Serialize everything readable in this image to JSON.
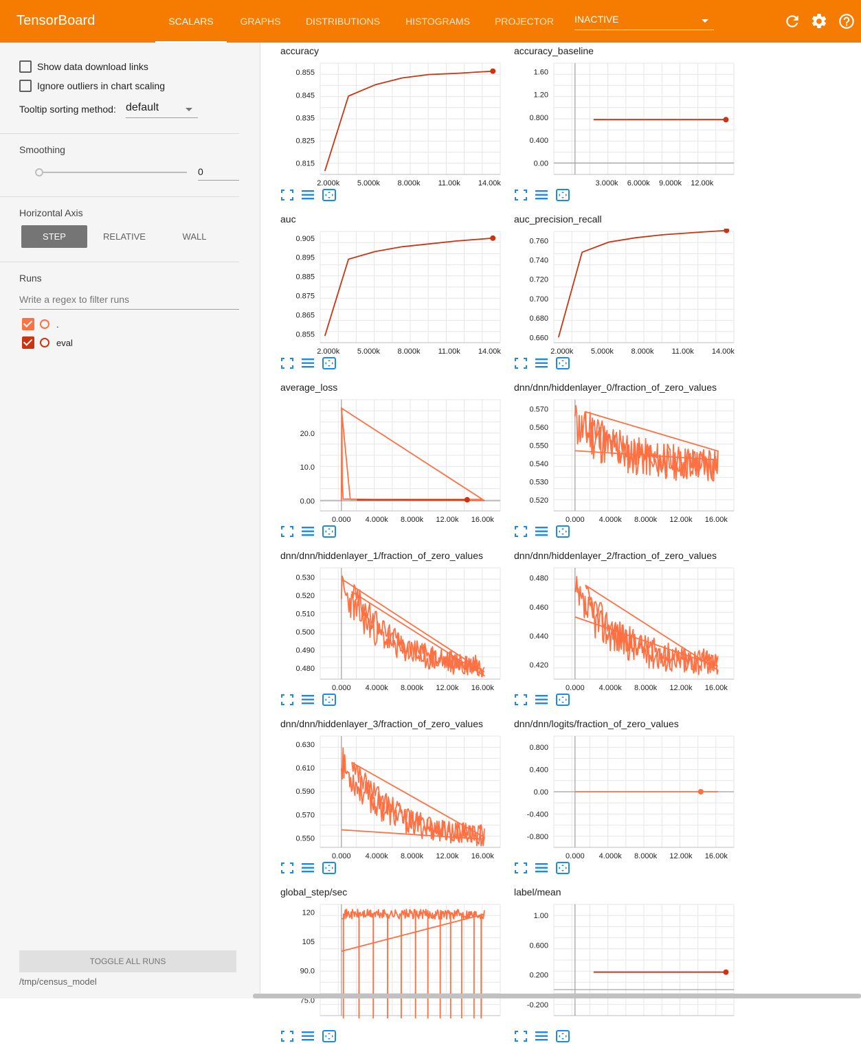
{
  "app": {
    "title": "TensorBoard"
  },
  "nav": {
    "tabs": [
      {
        "label": "SCALARS",
        "active": true
      },
      {
        "label": "GRAPHS"
      },
      {
        "label": "DISTRIBUTIONS"
      },
      {
        "label": "HISTOGRAMS"
      },
      {
        "label": "PROJECTOR"
      }
    ],
    "inactive_select": "INACTIVE",
    "icons": [
      "refresh-icon",
      "settings-icon",
      "help-icon"
    ]
  },
  "sidebar": {
    "show_download_links": {
      "label": "Show data download links",
      "checked": false
    },
    "ignore_outliers": {
      "label": "Ignore outliers in chart scaling",
      "checked": false
    },
    "tooltip_sorting": {
      "label": "Tooltip sorting method:",
      "value": "default"
    },
    "smoothing": {
      "title": "Smoothing",
      "value": "0"
    },
    "horizontal_axis": {
      "title": "Horizontal Axis",
      "options": [
        "STEP",
        "RELATIVE",
        "WALL"
      ],
      "selected": "STEP"
    },
    "runs": {
      "title": "Runs",
      "filter_placeholder": "Write a regex to filter runs",
      "items": [
        {
          "name": ".",
          "color": "#ff7043",
          "checked": true
        },
        {
          "name": "eval",
          "color": "#cc3311",
          "checked": true
        }
      ]
    },
    "toggle_all": "TOGGLE ALL RUNS",
    "logdir": "/tmp/census_model"
  },
  "colors": {
    "accent": "#f57c00",
    "run_train": "#ff7043",
    "run_eval": "#cc3311",
    "icon_blue": "#1e88e5"
  },
  "chart_data": [
    {
      "title": "accuracy",
      "type": "line",
      "x_ticks": [
        "2.000k",
        "5.000k",
        "8.000k",
        "11.00k",
        "14.00k"
      ],
      "y_ticks": [
        "0.855",
        "0.845",
        "0.835",
        "0.825",
        "0.815"
      ],
      "xlim": [
        1400,
        14800
      ],
      "ylim": [
        0.81,
        0.859
      ],
      "series": [
        {
          "run": "eval",
          "color": "#cc3311",
          "end_marker": true,
          "x": [
            1750,
            3500,
            5500,
            7500,
            9500,
            11500,
            14250
          ],
          "y": [
            0.8115,
            0.8445,
            0.8495,
            0.8525,
            0.854,
            0.8545,
            0.8555
          ]
        }
      ]
    },
    {
      "title": "accuracy_baseline",
      "type": "line",
      "x_ticks": [
        "3.000k",
        "6.000k",
        "9.000k",
        "12.00k"
      ],
      "y_ticks": [
        "1.60",
        "1.20",
        "0.800",
        "0.400",
        "0.00"
      ],
      "xlim": [
        -2000,
        15000
      ],
      "ylim": [
        -0.2,
        1.75
      ],
      "zero_line": true,
      "series": [
        {
          "run": "eval",
          "color": "#cc3311",
          "end_marker": true,
          "x": [
            1750,
            14250
          ],
          "y": [
            0.76,
            0.76
          ]
        }
      ]
    },
    {
      "title": "auc",
      "type": "line",
      "x_ticks": [
        "2.000k",
        "5.000k",
        "8.000k",
        "11.00k",
        "14.00k"
      ],
      "y_ticks": [
        "0.905",
        "0.895",
        "0.885",
        "0.875",
        "0.865",
        "0.855"
      ],
      "xlim": [
        1400,
        14800
      ],
      "ylim": [
        0.8505,
        0.9085
      ],
      "series": [
        {
          "run": "eval",
          "color": "#cc3311",
          "end_marker": true,
          "x": [
            1750,
            3500,
            5500,
            7500,
            9500,
            11500,
            14250
          ],
          "y": [
            0.854,
            0.894,
            0.898,
            0.9005,
            0.902,
            0.9035,
            0.905
          ]
        }
      ]
    },
    {
      "title": "auc_precision_recall",
      "type": "line",
      "x_ticks": [
        "2.000k",
        "5.000k",
        "8.000k",
        "11.00k",
        "14.00k"
      ],
      "y_ticks": [
        "0.760",
        "0.740",
        "0.720",
        "0.700",
        "0.680",
        "0.660"
      ],
      "xlim": [
        1400,
        14800
      ],
      "ylim": [
        0.6545,
        0.7695
      ],
      "series": [
        {
          "run": "eval",
          "color": "#cc3311",
          "end_marker": true,
          "x": [
            1750,
            3500,
            5500,
            7500,
            9500,
            11500,
            14250
          ],
          "y": [
            0.66,
            0.748,
            0.7585,
            0.763,
            0.766,
            0.768,
            0.7705
          ]
        }
      ]
    },
    {
      "title": "average_loss",
      "type": "line",
      "x_ticks": [
        "0.000",
        "4.000k",
        "8.000k",
        "12.00k",
        "16.00k"
      ],
      "y_ticks": [
        "20.0",
        "10.0",
        "0.00"
      ],
      "xlim": [
        -2400,
        18000
      ],
      "ylim": [
        -3,
        30
      ],
      "zero_line": true,
      "series": [
        {
          "run": ".",
          "color": "#ff7043",
          "x": [
            0,
            50,
            100,
            200,
            16200,
            0,
            1000,
            3000,
            6000,
            9000,
            12000,
            16000
          ],
          "y": [
            0,
            27.5,
            5,
            0.5,
            0.05,
            27.5,
            0.4,
            0.4,
            0.4,
            0.4,
            0.4,
            0.4
          ]
        },
        {
          "run": "eval",
          "color": "#cc3311",
          "end_marker": true,
          "x": [
            1750,
            5000,
            8000,
            11000,
            14250
          ],
          "y": [
            0.3,
            0.3,
            0.3,
            0.3,
            0.3
          ]
        }
      ]
    },
    {
      "title": "dnn/dnn/hiddenlayer_0/fraction_of_zero_values",
      "type": "line",
      "x_ticks": [
        "0.000",
        "4.000k",
        "8.000k",
        "12.00k",
        "16.00k"
      ],
      "y_ticks": [
        "0.570",
        "0.560",
        "0.550",
        "0.540",
        "0.530",
        "0.520"
      ],
      "xlim": [
        -2400,
        18000
      ],
      "ylim": [
        0.514,
        0.575
      ],
      "series": [
        {
          "run": ".",
          "color": "#ff7043",
          "noisy": true,
          "seed": 11,
          "x_start": 0,
          "x_end": 16200,
          "start": 0.562,
          "end": 0.539,
          "noise": 0.009,
          "peak": 0.568,
          "overlay_line": {
            "x": [
              0,
              16200
            ],
            "y": [
              0.547,
              0.542
            ]
          }
        }
      ]
    },
    {
      "title": "dnn/dnn/hiddenlayer_1/fraction_of_zero_values",
      "type": "line",
      "x_ticks": [
        "0.000",
        "4.000k",
        "8.000k",
        "12.00k",
        "16.00k"
      ],
      "y_ticks": [
        "0.530",
        "0.520",
        "0.510",
        "0.500",
        "0.490",
        "0.480"
      ],
      "xlim": [
        -2400,
        18000
      ],
      "ylim": [
        0.474,
        0.535
      ],
      "series": [
        {
          "run": ".",
          "color": "#ff7043",
          "noisy": true,
          "seed": 23,
          "x_start": 0,
          "x_end": 16200,
          "start": 0.524,
          "end": 0.481,
          "noise": 0.006,
          "peak": 0.529,
          "overlay_line": {
            "x": [
              0,
              16200
            ],
            "y": [
              0.529,
              0.478
            ]
          }
        }
      ]
    },
    {
      "title": "dnn/dnn/hiddenlayer_2/fraction_of_zero_values",
      "type": "line",
      "x_ticks": [
        "0.000",
        "4.000k",
        "8.000k",
        "12.00k",
        "16.00k"
      ],
      "y_ticks": [
        "0.480",
        "0.460",
        "0.440",
        "0.420"
      ],
      "xlim": [
        -2400,
        18000
      ],
      "ylim": [
        0.41,
        0.487
      ],
      "series": [
        {
          "run": ".",
          "color": "#ff7043",
          "noisy": true,
          "seed": 37,
          "x_start": 0,
          "x_end": 16200,
          "start": 0.468,
          "end": 0.421,
          "noise": 0.009,
          "peak": 0.481,
          "overlay_line": {
            "x": [
              0,
              16200
            ],
            "y": [
              0.453,
              0.419
            ]
          }
        }
      ]
    },
    {
      "title": "dnn/dnn/hiddenlayer_3/fraction_of_zero_values",
      "type": "line",
      "x_ticks": [
        "0.000",
        "4.000k",
        "8.000k",
        "12.00k",
        "16.00k"
      ],
      "y_ticks": [
        "0.630",
        "0.610",
        "0.590",
        "0.570",
        "0.550"
      ],
      "xlim": [
        -2400,
        18000
      ],
      "ylim": [
        0.542,
        0.637
      ],
      "series": [
        {
          "run": ".",
          "color": "#ff7043",
          "noisy": true,
          "seed": 53,
          "x_start": 0,
          "x_end": 16200,
          "start": 0.614,
          "end": 0.552,
          "noise": 0.009,
          "peak": 0.627,
          "overlay_line": {
            "x": [
              0,
              16200
            ],
            "y": [
              0.557,
              0.549
            ]
          }
        }
      ]
    },
    {
      "title": "dnn/dnn/logits/fraction_of_zero_values",
      "type": "line",
      "x_ticks": [
        "0.000",
        "4.000k",
        "8.000k",
        "12.00k",
        "16.00k"
      ],
      "y_ticks": [
        "0.800",
        "0.400",
        "0.00",
        "-0.400",
        "-0.800"
      ],
      "xlim": [
        -2400,
        18000
      ],
      "ylim": [
        -1.0,
        1.0
      ],
      "zero_line": true,
      "series": [
        {
          "run": ".",
          "color": "#ff7043",
          "x": [
            0,
            16200
          ],
          "y": [
            0,
            0
          ]
        },
        {
          "run": "eval",
          "color": "#ff7043",
          "end_marker": true,
          "x": [
            14250
          ],
          "y": [
            0
          ]
        }
      ]
    },
    {
      "title": "global_step/sec",
      "type": "line",
      "x_ticks": [],
      "y_ticks": [
        "120",
        "105",
        "90.0",
        "75.0"
      ],
      "xlim": [
        -2400,
        18000
      ],
      "ylim": [
        67,
        124
      ],
      "clipped": true,
      "series": [
        {
          "run": ".",
          "color": "#ff7043",
          "spiky": true,
          "seed": 71,
          "x_start": 0,
          "x_end": 16200,
          "base": 119,
          "noise": 2.5,
          "dips_x": [
            200,
            2000,
            3600,
            5200,
            6800,
            8400,
            9800,
            11200,
            12400,
            13600,
            15000,
            15800
          ],
          "overlay_line": {
            "x": [
              0,
              16200
            ],
            "y": [
              100,
              119
            ]
          }
        }
      ]
    },
    {
      "title": "label/mean",
      "type": "line",
      "x_ticks": [],
      "y_ticks": [
        "1.00",
        "0.600",
        "0.200",
        "-0.200"
      ],
      "xlim": [
        -2000,
        15000
      ],
      "ylim": [
        -0.35,
        1.15
      ],
      "zero_line": true,
      "clipped": true,
      "series": [
        {
          "run": "eval",
          "color": "#cc3311",
          "end_marker": true,
          "x": [
            1750,
            14250
          ],
          "y": [
            0.236,
            0.236
          ]
        }
      ]
    }
  ]
}
